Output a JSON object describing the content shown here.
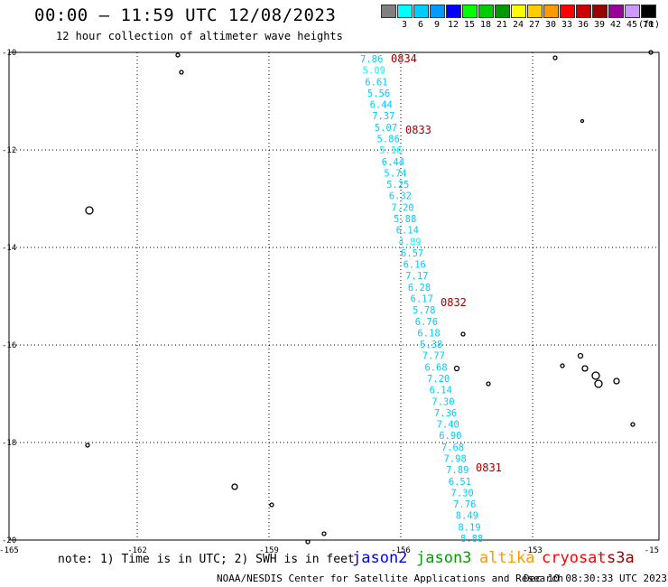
{
  "header": {
    "title": "00:00 — 11:59 UTC 12/08/2023",
    "subtitle": "12 hour collection of altimeter wave heights"
  },
  "legend": {
    "unit": "(ft)",
    "items": [
      {
        "label": "",
        "color": "#808080"
      },
      {
        "label": "3",
        "color": "#00ffff"
      },
      {
        "label": "6",
        "color": "#00ccff"
      },
      {
        "label": "9",
        "color": "#0099ff"
      },
      {
        "label": "12",
        "color": "#0000ff"
      },
      {
        "label": "15",
        "color": "#00ff00"
      },
      {
        "label": "18",
        "color": "#00cc00"
      },
      {
        "label": "21",
        "color": "#009900"
      },
      {
        "label": "24",
        "color": "#ffff00"
      },
      {
        "label": "27",
        "color": "#ffcc00"
      },
      {
        "label": "30",
        "color": "#ff9900"
      },
      {
        "label": "33",
        "color": "#ff0000"
      },
      {
        "label": "36",
        "color": "#cc0000"
      },
      {
        "label": "39",
        "color": "#990000"
      },
      {
        "label": "42",
        "color": "#990099"
      },
      {
        "label": "45",
        "color": "#cc99ff"
      },
      {
        "label": "70",
        "color": "#000000"
      }
    ]
  },
  "axes": {
    "x_ticks": [
      "-165",
      "-162",
      "-159",
      "-156",
      "-153",
      "-15"
    ],
    "y_ticks": [
      "-10",
      "-12",
      "-14",
      "-16",
      "-18",
      "-20"
    ]
  },
  "track": {
    "values": [
      "7.86",
      "5.09",
      "6.61",
      "5.56",
      "6.44",
      "7.37",
      "5.07",
      "5.86",
      "5.16",
      "6.44",
      "5.74",
      "5.25",
      "6.32",
      "7.20",
      "5.88",
      "6.14",
      "4.89",
      "6.57",
      "6.16",
      "7.17",
      "6.28",
      "6.17",
      "5.78",
      "6.76",
      "6.18",
      "5.38",
      "7.77",
      "6.68",
      "7.20",
      "6.14",
      "7.30",
      "7.36",
      "7.40",
      "6.90",
      "7.68",
      "7.98",
      "7.89",
      "6.51",
      "7.30",
      "7.76",
      "8.49",
      "8.19",
      "8.88"
    ],
    "colors": [
      "#00ccff",
      "#00ffff",
      "#00ccff",
      "#00ccff",
      "#00ccff",
      "#00ccff",
      "#00ccff",
      "#00ccff",
      "#00ffff",
      "#00ccff",
      "#00ccff",
      "#00ccff",
      "#00ccff",
      "#00ccff",
      "#00ccff",
      "#00ccff",
      "#00ffff",
      "#00ccff",
      "#00ccff",
      "#00ccff",
      "#00ccff",
      "#00ccff",
      "#00ccff",
      "#00ccff",
      "#00ccff",
      "#00ccff",
      "#00ccff",
      "#00ccff",
      "#00ccff",
      "#00ccff",
      "#00ccff",
      "#00ccff",
      "#00ccff",
      "#00ccff",
      "#00ccff",
      "#00ccff",
      "#00ccff",
      "#00ccff",
      "#00ccff",
      "#00ccff",
      "#00ccff",
      "#00ccff",
      "#00ccff"
    ],
    "time_labels": [
      "0834",
      "0833",
      "0832",
      "0831"
    ]
  },
  "footer": {
    "note": "note: 1) Time is in UTC; 2) SWH is in feet",
    "satellites": [
      {
        "name": "jason2",
        "color": "#0000ff"
      },
      {
        "name": "jason3",
        "color": "#00a000"
      },
      {
        "name": "altika",
        "color": "#ff9900"
      },
      {
        "name": "cryosat",
        "color": "#ff0000"
      },
      {
        "name": "s3a",
        "color": "#990000"
      }
    ],
    "credit": "NOAA/NESDIS Center for Satellite Applications and Research",
    "timestamp": "Dec 10 08:30:33 UTC 2023"
  }
}
